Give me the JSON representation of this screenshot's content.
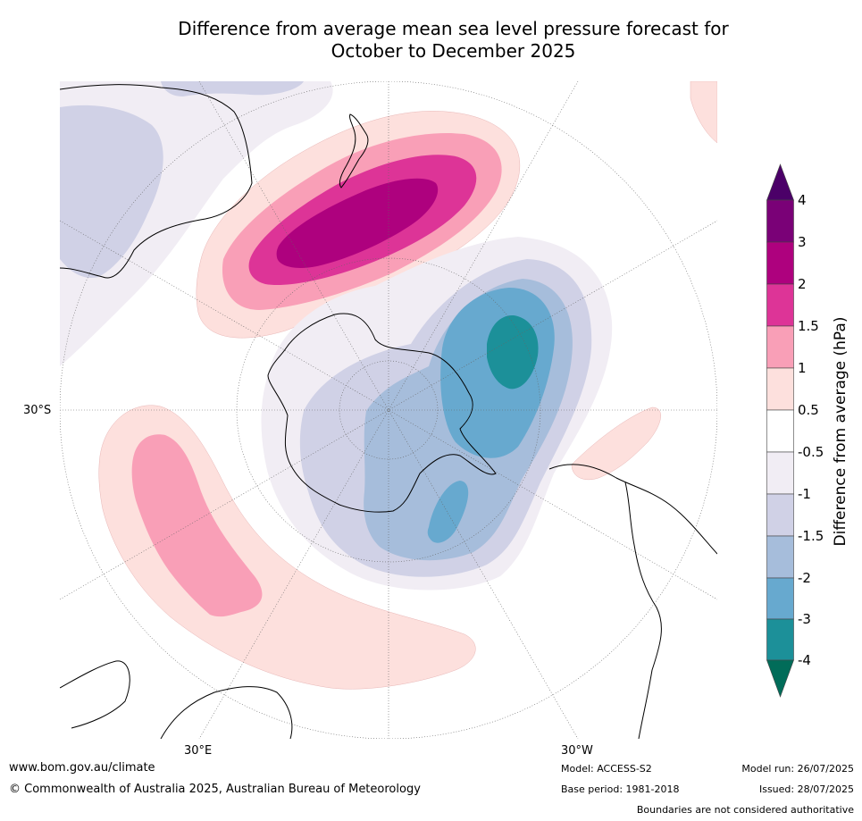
{
  "title_line1": "Difference from average mean sea level pressure forecast for",
  "title_line2": "October to December 2025",
  "map_labels": {
    "lat": "30°S",
    "lon_east": "30°E",
    "lon_west": "30°W"
  },
  "colorbar": {
    "title": "Difference from average (hPa)",
    "ticks": [
      "4",
      "3",
      "2",
      "1.5",
      "1",
      "0.5",
      "-0.5",
      "-1",
      "-1.5",
      "-2",
      "-3",
      "-4"
    ],
    "colors": [
      "#4b0068",
      "#7a0177",
      "#ae017e",
      "#dd3497",
      "#f99fb7",
      "#fde0dd",
      "#ffffff",
      "#f1edf4",
      "#d0d1e6",
      "#a6bddb",
      "#67a9cf",
      "#1c9099",
      "#016c59"
    ]
  },
  "footer": {
    "website": "www.bom.gov.au/climate",
    "copyright": "© Commonwealth of Australia 2025, Australian Bureau of Meteorology",
    "model": "Model: ACCESS-S2",
    "base_period": "Base period: 1981-2018",
    "model_run": "Model run: 26/07/2025",
    "issued": "Issued: 28/07/2025",
    "disclaimer": "Boundaries are not considered authoritative"
  }
}
